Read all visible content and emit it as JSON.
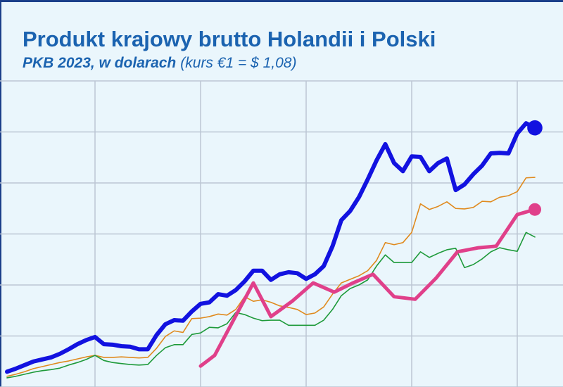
{
  "chart_data": {
    "type": "line",
    "title": "Produkt krajowy brutto Holandii i Polski",
    "subtitle": [
      "PKB 2023, w dolarach",
      "(kurs €1 = $ 1,08)"
    ],
    "x": [
      -10,
      -9,
      -8,
      -7,
      -6,
      -5,
      -4,
      -3,
      -2,
      -1,
      0,
      1,
      2,
      3,
      4,
      5,
      6,
      7,
      8,
      9,
      10,
      11,
      12,
      13,
      14,
      15,
      16,
      17,
      18,
      19,
      20,
      21,
      22,
      23,
      24,
      25,
      26,
      27,
      28,
      29,
      30,
      31,
      32,
      33,
      34,
      35,
      36,
      37,
      38,
      39,
      40,
      41,
      42,
      43,
      44,
      45,
      46,
      47,
      48,
      49,
      50
    ],
    "xlim": [
      -10.8,
      53.2
    ],
    "xticks": [
      0,
      12,
      24,
      36,
      48
    ],
    "ylim": [
      0,
      60
    ],
    "yticks": [
      0,
      10,
      20,
      30,
      40,
      50,
      60
    ],
    "grid": true,
    "series": [
      {
        "color": "#1212e0",
        "width": 6,
        "end_marker": true,
        "values": [
          3.0,
          3.6,
          4.3,
          5.0,
          5.4,
          5.8,
          6.5,
          7.4,
          8.4,
          9.2,
          9.8,
          8.4,
          8.3,
          8.0,
          7.9,
          7.4,
          7.4,
          10.2,
          12.3,
          13.1,
          13.0,
          14.8,
          16.3,
          16.6,
          18.2,
          17.9,
          19.0,
          20.7,
          22.8,
          22.8,
          21.0,
          22.1,
          22.5,
          22.3,
          21.2,
          22.1,
          23.7,
          27.6,
          32.7,
          34.5,
          37.2,
          40.7,
          44.4,
          47.6,
          43.9,
          42.3,
          45.2,
          45.1,
          42.3,
          43.9,
          44.8,
          38.6,
          39.7,
          41.7,
          43.4,
          45.8,
          45.9,
          45.8,
          49.7,
          51.7,
          50.8
        ]
      },
      {
        "color": "#e08a1e",
        "width": 1.6,
        "values": [
          2.1,
          2.5,
          3.0,
          3.6,
          4.0,
          4.4,
          4.8,
          5.1,
          5.5,
          5.9,
          6.2,
          5.8,
          5.8,
          5.9,
          5.8,
          5.7,
          5.8,
          7.6,
          9.9,
          11.0,
          10.7,
          13.4,
          13.5,
          13.8,
          14.3,
          14.1,
          15.2,
          17.7,
          16.8,
          17.1,
          16.6,
          15.9,
          15.6,
          15.2,
          14.2,
          14.5,
          15.7,
          18.2,
          20.4,
          21.1,
          21.8,
          22.8,
          24.8,
          28.3,
          27.9,
          28.3,
          30.3,
          35.9,
          34.8,
          35.4,
          36.3,
          35.0,
          34.9,
          35.2,
          36.4,
          36.3,
          37.2,
          37.5,
          38.3,
          41.0,
          41.1
        ]
      },
      {
        "color": "#1e9a3a",
        "width": 1.6,
        "values": [
          1.8,
          2.1,
          2.5,
          2.9,
          3.2,
          3.4,
          3.7,
          4.3,
          4.8,
          5.4,
          6.2,
          5.2,
          4.8,
          4.6,
          4.4,
          4.3,
          4.4,
          6.2,
          7.7,
          8.3,
          8.3,
          10.3,
          10.6,
          11.7,
          11.6,
          12.4,
          14.6,
          14.2,
          13.5,
          13.0,
          13.1,
          13.1,
          12.1,
          12.1,
          12.1,
          12.1,
          13.1,
          15.2,
          17.9,
          19.3,
          20.0,
          21.0,
          23.7,
          25.9,
          24.4,
          24.4,
          24.4,
          26.5,
          25.4,
          26.2,
          26.9,
          27.2,
          23.4,
          24.0,
          25.1,
          26.5,
          27.3,
          26.9,
          26.6,
          30.3,
          29.4
        ]
      },
      {
        "color": "#e0408a",
        "width": 5,
        "end_marker": true,
        "x": [
          12,
          13.6,
          18,
          20,
          22.4,
          24.8,
          27.2,
          29.2,
          31.6,
          34,
          36.4,
          38.8,
          41.2,
          43.6,
          45.6,
          48,
          50
        ],
        "values": [
          4.1,
          6.2,
          20.4,
          13.8,
          16.8,
          20.4,
          18.6,
          20.3,
          22.1,
          17.7,
          17.2,
          21.4,
          26.5,
          27.3,
          27.6,
          33.8,
          34.8
        ]
      }
    ]
  }
}
